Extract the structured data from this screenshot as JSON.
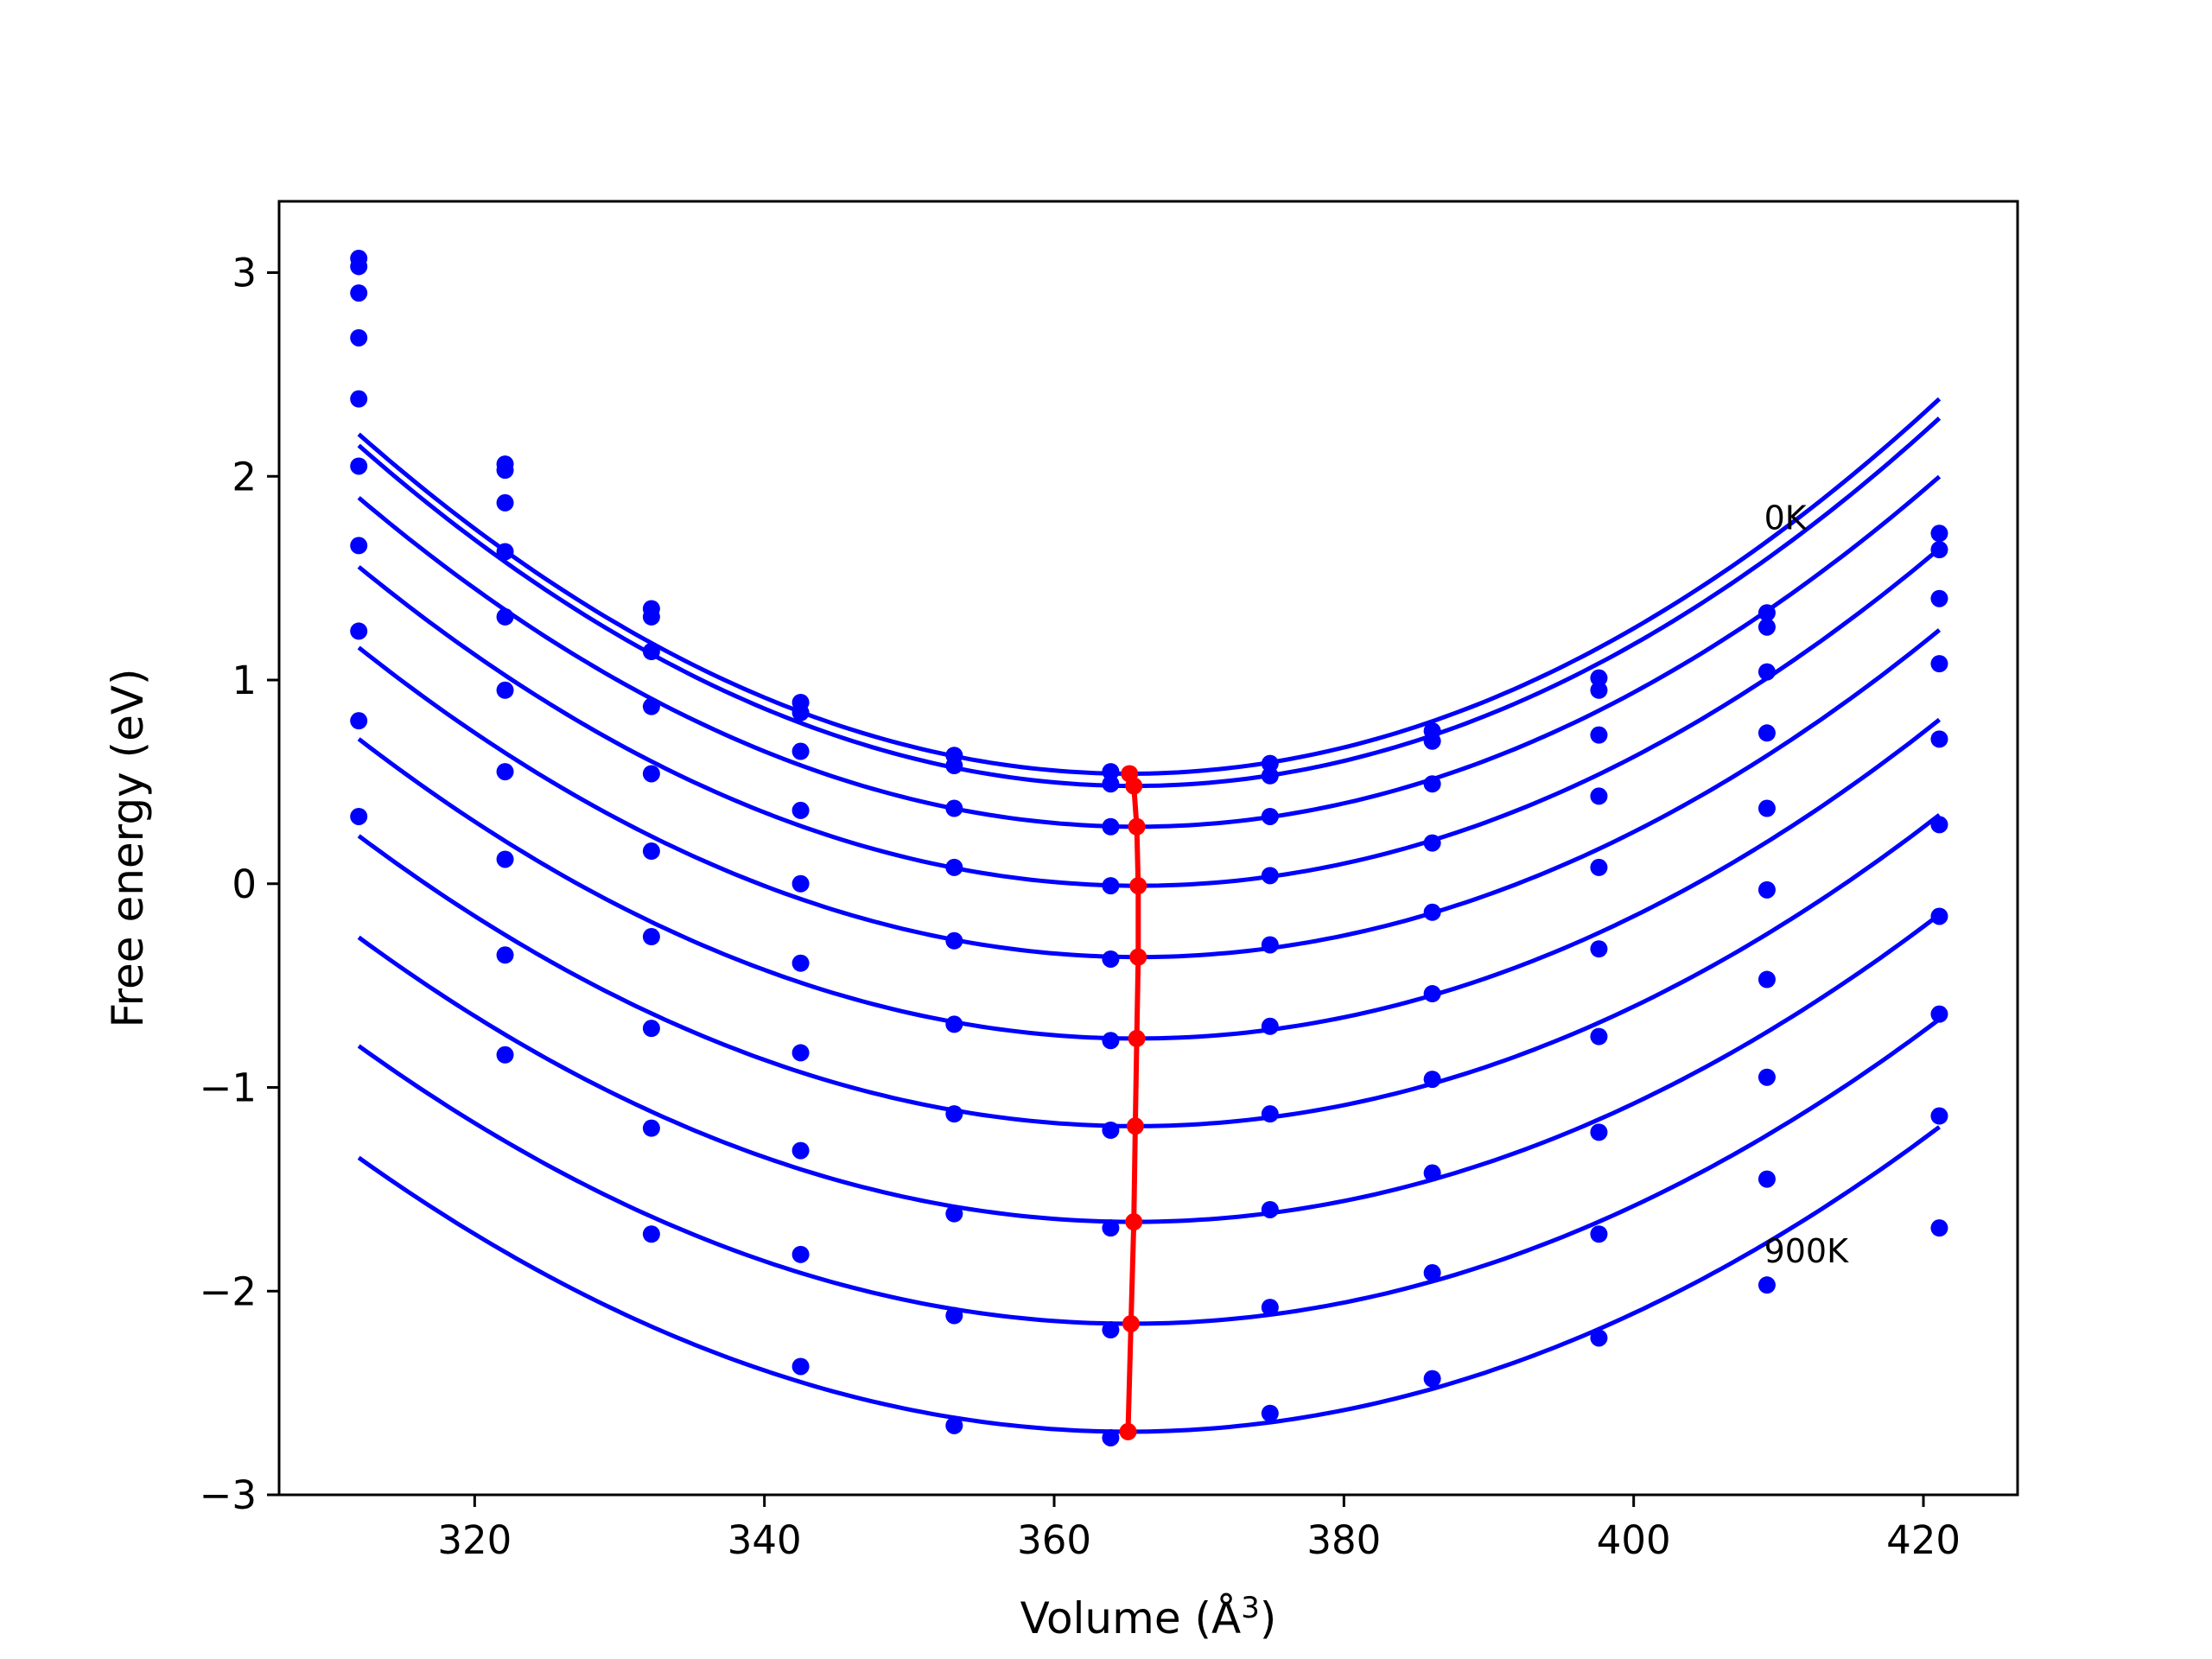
{
  "chart_data": {
    "type": "line",
    "title": "",
    "xlabel": "Volume (Å",
    "xlabel_sup": "3",
    "xlabel_close": ")",
    "ylabel": "Free energy (eV)",
    "xlim": [
      306.5,
      426.5
    ],
    "ylim": [
      -3.0,
      3.35
    ],
    "xticks": [
      320,
      340,
      360,
      380,
      400,
      420
    ],
    "xtick_labels": [
      "320",
      "340",
      "360",
      "380",
      "400",
      "420"
    ],
    "yticks": [
      -3,
      -2,
      -1,
      0,
      1,
      2,
      3
    ],
    "ytick_labels": [
      "−3",
      "−2",
      "−1",
      "0",
      "1",
      "2",
      "3"
    ],
    "grid": false,
    "annotations": [
      {
        "text": "0K",
        "x": 409.0,
        "y": 1.8
      },
      {
        "text": "900K",
        "x": 409.0,
        "y": -1.8
      }
    ],
    "curve_color": "#0000ff",
    "min_color": "#ff0000",
    "x": [
      312.0,
      322.1,
      332.2,
      342.5,
      353.1,
      363.9,
      374.9,
      386.1,
      397.6,
      409.2,
      421.1
    ],
    "series": [
      {
        "values": [
          3.07,
          2.06,
          1.35,
          0.89,
          0.63,
          0.55,
          0.59,
          0.75,
          1.01,
          1.33,
          1.72
        ],
        "fit": {
          "a": 0.000589,
          "v0": 365.2,
          "f0": 0.54
        }
      },
      {
        "values": [
          3.03,
          2.03,
          1.31,
          0.84,
          0.58,
          0.49,
          0.53,
          0.7,
          0.95,
          1.26,
          1.64
        ],
        "fit": {
          "a": 0.000584,
          "v0": 365.5,
          "f0": 0.48
        }
      },
      {
        "values": [
          2.9,
          1.87,
          1.14,
          0.65,
          0.37,
          0.28,
          0.33,
          0.49,
          0.73,
          1.04,
          1.4
        ],
        "fit": {
          "a": 0.00056,
          "v0": 365.7,
          "f0": 0.28
        }
      },
      {
        "values": [
          2.68,
          1.63,
          0.87,
          0.36,
          0.08,
          -0.01,
          0.04,
          0.2,
          0.43,
          0.74,
          1.08
        ],
        "fit": {
          "a": 0.000541,
          "v0": 365.8,
          "f0": -0.01
        }
      },
      {
        "values": [
          2.38,
          1.31,
          0.54,
          0.0,
          -0.28,
          -0.37,
          -0.3,
          -0.14,
          0.08,
          0.37,
          0.71
        ],
        "fit": {
          "a": 0.000525,
          "v0": 365.8,
          "f0": -0.36
        }
      },
      {
        "values": [
          2.05,
          0.95,
          0.16,
          -0.39,
          -0.69,
          -0.77,
          -0.7,
          -0.54,
          -0.32,
          -0.03,
          0.29
        ],
        "fit": {
          "a": 0.00051,
          "v0": 365.7,
          "f0": -0.76
        }
      },
      {
        "values": [
          1.66,
          0.55,
          -0.26,
          -0.83,
          -1.13,
          -1.21,
          -1.13,
          -0.96,
          -0.75,
          -0.47,
          -0.16
        ],
        "fit": {
          "a": 0.000496,
          "v0": 365.6,
          "f0": -1.19
        }
      },
      {
        "values": [
          1.24,
          0.12,
          -0.71,
          -1.31,
          -1.62,
          -1.69,
          -1.6,
          -1.42,
          -1.22,
          -0.95,
          -0.64
        ],
        "fit": {
          "a": 0.000488,
          "v0": 365.5,
          "f0": -1.66
        }
      },
      {
        "values": [
          0.8,
          -0.35,
          -1.2,
          -1.82,
          -2.12,
          -2.19,
          -2.08,
          -1.91,
          -1.72,
          -1.45,
          -1.14
        ],
        "fit": {
          "a": 0.00048,
          "v0": 365.3,
          "f0": -2.16
        }
      },
      {
        "values": [
          0.33,
          -0.84,
          -1.72,
          -2.37,
          -2.66,
          -2.72,
          -2.6,
          -2.43,
          -2.23,
          -1.97,
          -1.69
        ],
        "fit": {
          "a": 0.000477,
          "v0": 365.1,
          "f0": -2.69
        }
      }
    ],
    "minima": {
      "x": [
        365.2,
        365.5,
        365.7,
        365.8,
        365.8,
        365.7,
        365.6,
        365.5,
        365.3,
        365.1
      ],
      "y": [
        0.54,
        0.48,
        0.28,
        -0.01,
        -0.36,
        -0.76,
        -1.19,
        -1.66,
        -2.16,
        -2.69
      ]
    }
  }
}
